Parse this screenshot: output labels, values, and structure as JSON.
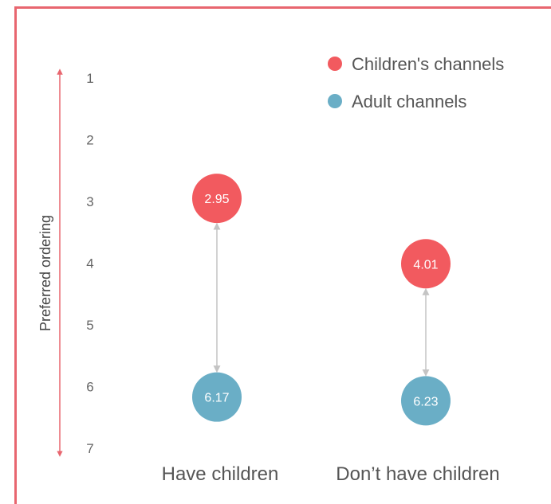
{
  "chart_data": {
    "type": "scatter",
    "title": "",
    "xlabel": "",
    "ylabel": "Preferred ordering",
    "ylim": [
      1,
      7
    ],
    "y_reversed": true,
    "y_ticks": [
      "1",
      "2",
      "3",
      "4",
      "5",
      "6",
      "7"
    ],
    "categories": [
      "Have children",
      "Don’t have children"
    ],
    "series": [
      {
        "name": "Children's channels",
        "color": "#f25a5f",
        "values": [
          2.95,
          4.01
        ],
        "labels": [
          "2.95",
          "4.01"
        ]
      },
      {
        "name": "Adult channels",
        "color": "#6aaec6",
        "values": [
          6.17,
          6.23
        ],
        "labels": [
          "6.17",
          "6.23"
        ]
      }
    ],
    "legend_position": "top-right",
    "grid": false
  },
  "colors": {
    "frame": "#e8666f",
    "axis_arrow": "#e8666f",
    "connector": "#c4c4c4"
  }
}
